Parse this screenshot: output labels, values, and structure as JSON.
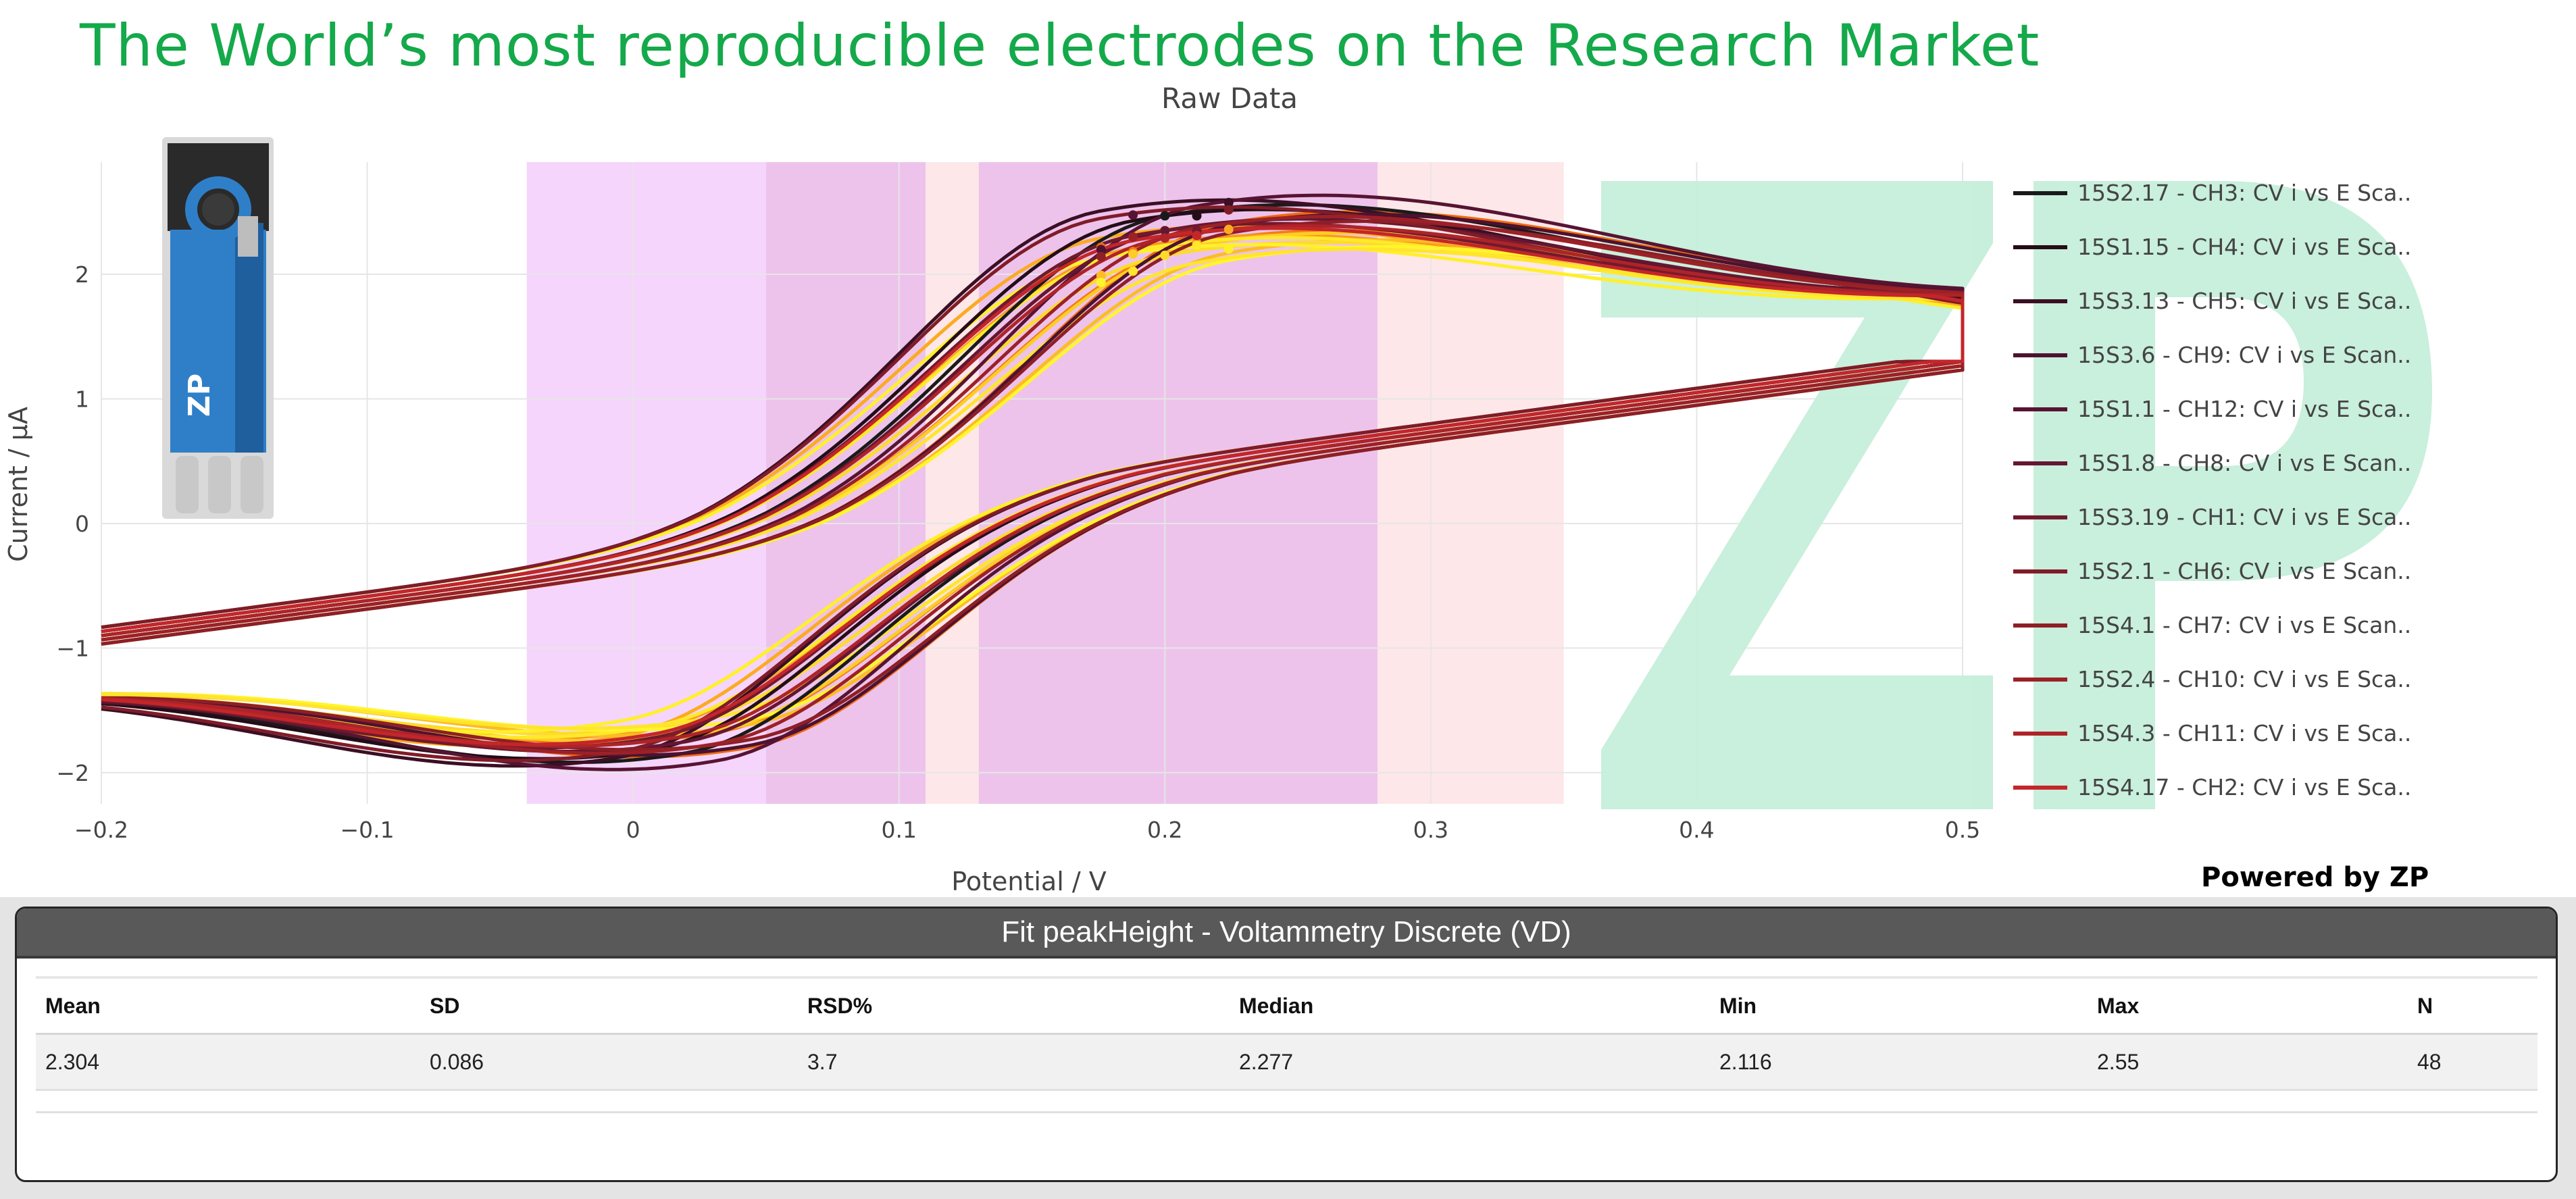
{
  "headline": "The World’s most reproducible electrodes on the Research Market",
  "powered_by": "Powered by ZP",
  "watermark": "ZP",
  "electrode_label": "ZP",
  "colors": {
    "headline": "#14a94a",
    "watermark": "#c6eedb",
    "band_violet": "#f5d5fb",
    "band_magenta": "#edc3ec",
    "band_pink": "#fde7e9",
    "electrode_blue": "#2f7fc8"
  },
  "chart_data": {
    "type": "line",
    "title": "Raw Data",
    "xlabel": "Potential / V",
    "ylabel": "Current / µA",
    "xlim": [
      -0.2,
      0.5
    ],
    "ylim": [
      -2.25,
      2.9
    ],
    "x_ticks": [
      -0.2,
      -0.1,
      0,
      0.1,
      0.2,
      0.3,
      0.4,
      0.5
    ],
    "x_tick_labels": [
      "−0.2",
      "−0.1",
      "0",
      "0.1",
      "0.2",
      "0.3",
      "0.4",
      "0.5"
    ],
    "y_ticks": [
      -2,
      -1,
      0,
      1,
      2
    ],
    "y_tick_labels": [
      "−2",
      "−1",
      "0",
      "1",
      "2"
    ],
    "grid": true,
    "legend_position": "right",
    "shaded_regions": [
      {
        "x": [
          -0.04,
          0.05
        ],
        "color": "#f5d5fb"
      },
      {
        "x": [
          0.05,
          0.11
        ],
        "color": "#edc3ec"
      },
      {
        "x": [
          0.11,
          0.13
        ],
        "color": "#fde7e9"
      },
      {
        "x": [
          0.13,
          0.28
        ],
        "color": "#edc3ec"
      },
      {
        "x": [
          0.28,
          0.35
        ],
        "color": "#fde7e9"
      }
    ],
    "cv_model": {
      "baseline_forward_x": [
        -0.2,
        0.05,
        0.5
      ],
      "baseline_forward_y": [
        -0.9,
        -0.2,
        1.5
      ],
      "baseline_reverse_x": [
        -0.2,
        0.2,
        0.5
      ],
      "baseline_reverse_y": [
        -1.05,
        0.45,
        1.3
      ],
      "peak_anodic_potential": 0.2,
      "peak_anodic_current": 2.35,
      "peak_cathodic_potential": 0.02,
      "peak_cathodic_current": -1.75
    },
    "series": [
      {
        "name": "15S2.17 - CH3: CV i vs E Sca..",
        "color": "#1a1a1a",
        "scale": 1.06
      },
      {
        "name": "15S1.15 - CH4: CV i vs E Sca..",
        "color": "#240d17",
        "scale": 1.04
      },
      {
        "name": "15S3.13 - CH5: CV i vs E Sca..",
        "color": "#3b0f24",
        "scale": 1.08
      },
      {
        "name": "15S3.6 - CH9: CV i vs E Scan..",
        "color": "#4d1230",
        "scale": 1.02
      },
      {
        "name": "15S1.1 - CH12: CV i vs E Sca..",
        "color": "#571432",
        "scale": 1.1
      },
      {
        "name": "15S1.8 - CH8: CV i vs E Scan..",
        "color": "#641633",
        "scale": 1.0
      },
      {
        "name": "15S3.19 - CH1: CV i vs E Sca..",
        "color": "#711a2c",
        "scale": 0.98
      },
      {
        "name": "15S2.1 - CH6: CV i vs E Scan..",
        "color": "#801c28",
        "scale": 1.05
      },
      {
        "name": "15S4.1 - CH7: CV i vs E Scan..",
        "color": "#8e1f26",
        "scale": 0.99
      },
      {
        "name": "15S2.4 - CH10: CV i vs E Sca..",
        "color": "#9c2127",
        "scale": 1.01
      },
      {
        "name": "15S4.3 - CH11: CV i vs E Sca..",
        "color": "#ad2428",
        "scale": 0.97
      },
      {
        "name": "15S4.17 - CH2: CV i vs E Sca..",
        "color": "#c4262a",
        "scale": 0.96
      }
    ],
    "extra_traces": [
      {
        "color": "#f06a10",
        "scale": 1.03
      },
      {
        "color": "#f47b12",
        "scale": 0.95
      },
      {
        "color": "#f78a16",
        "scale": 1.0
      },
      {
        "color": "#f99a1c",
        "scale": 0.93
      },
      {
        "color": "#fbab20",
        "scale": 0.97
      },
      {
        "color": "#fcbc24",
        "scale": 0.91
      },
      {
        "color": "#fdcc28",
        "scale": 0.94
      },
      {
        "color": "#fedb2a",
        "scale": 0.9
      },
      {
        "color": "#ffe92a",
        "scale": 0.92
      },
      {
        "color": "#fff02a",
        "scale": 0.89
      },
      {
        "color": "#fff52c",
        "scale": 0.88
      },
      {
        "color": "#ffe52c",
        "scale": 0.87
      }
    ]
  },
  "stats": {
    "title": "Fit peakHeight - Voltammetry Discrete (VD)",
    "headers": {
      "mean": "Mean",
      "sd": "SD",
      "rsd": "RSD%",
      "median": "Median",
      "min": "Min",
      "max": "Max",
      "n": "N"
    },
    "row": {
      "mean": "2.304",
      "sd": "0.086",
      "rsd": "3.7",
      "median": "2.277",
      "min": "2.116",
      "max": "2.55",
      "n": "48"
    }
  }
}
